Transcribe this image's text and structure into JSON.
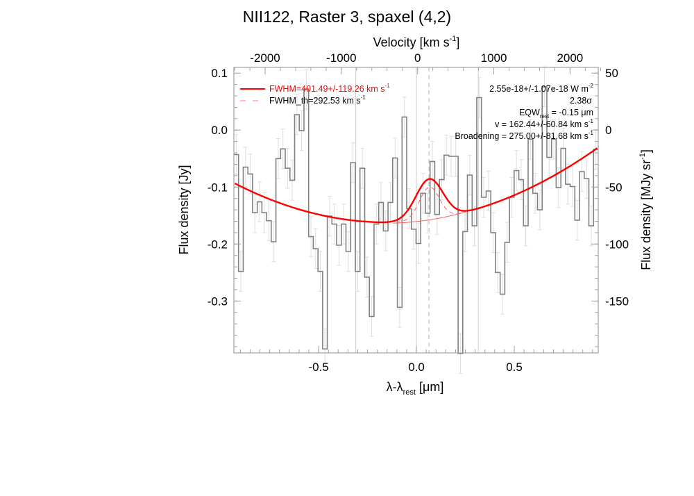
{
  "chart_data": {
    "type": "line",
    "title": "NII122, Raster 3, spaxel (4,2)",
    "top_xlabel": {
      "main": "Velocity [km s",
      "sup": "-1",
      "end": "]"
    },
    "xlabel": {
      "main": "λ-λ",
      "sub": "rest",
      "end": " [μm]"
    },
    "ylabel": "Flux density [Jy]",
    "right_ylabel": {
      "main": "Flux density [MJy sr",
      "sup": "-1",
      "end": "]"
    },
    "xlim": [
      -0.933,
      0.929
    ],
    "ylim": [
      -0.391,
      0.11
    ],
    "velocity_lim": [
      -2410,
      2370
    ],
    "right_ylim": [
      -195.5,
      55
    ],
    "xticks": [
      {
        "v": -0.5,
        "label": "-0.5"
      },
      {
        "v": 0.0,
        "label": "0.0"
      },
      {
        "v": 0.5,
        "label": "0.5"
      }
    ],
    "yticks": [
      {
        "v": 0.1,
        "label": "0.1"
      },
      {
        "v": 0.0,
        "label": "0.0"
      },
      {
        "v": -0.1,
        "label": "-0.1"
      },
      {
        "v": -0.2,
        "label": "-0.2"
      },
      {
        "v": -0.3,
        "label": "-0.3"
      }
    ],
    "velocity_ticks": [
      {
        "v": -2000,
        "label": "-2000"
      },
      {
        "v": -1000,
        "label": "-1000"
      },
      {
        "v": 0,
        "label": "0"
      },
      {
        "v": 1000,
        "label": "1000"
      },
      {
        "v": 2000,
        "label": "2000"
      }
    ],
    "right_yticks": [
      {
        "v": 50,
        "label": "50"
      },
      {
        "v": 0,
        "label": "0"
      },
      {
        "v": -50,
        "label": "-50"
      },
      {
        "v": -100,
        "label": "-100"
      },
      {
        "v": -150,
        "label": "-150"
      }
    ],
    "spectrum": {
      "name": "Observed flux",
      "color": "#808080",
      "error": 0.035,
      "values": [
        -0.043,
        -0.248,
        -0.065,
        -0.077,
        -0.145,
        -0.126,
        -0.145,
        -0.159,
        -0.196,
        -0.05,
        -0.033,
        -0.067,
        -0.088,
        0.027,
        -0.001,
        0.072,
        -0.187,
        -0.208,
        -0.248,
        -0.384,
        -0.151,
        -0.165,
        -0.202,
        -0.165,
        -0.213,
        -0.057,
        -0.248,
        -0.067,
        -0.258,
        -0.327,
        -0.165,
        -0.127,
        -0.177,
        -0.127,
        -0.049,
        -0.311,
        0.023,
        -0.138,
        -0.174,
        -0.199,
        -0.111,
        -0.146,
        -0.055,
        -0.148,
        -0.087,
        -0.044,
        -0.046,
        -0.046,
        -0.392,
        -0.178,
        -0.079,
        -0.168,
        0.057,
        -0.118,
        -0.107,
        -0.18,
        -0.25,
        -0.288,
        -0.197,
        -0.118,
        -0.071,
        -0.087,
        -0.168,
        -0.016,
        -0.111,
        -0.14,
        0.076,
        -0.048,
        -0.016,
        -0.101,
        -0.032,
        -0.095,
        -0.099,
        -0.158,
        -0.073,
        -0.085,
        -0.168,
        -0.034
      ]
    },
    "fit": {
      "color": "#ff0000",
      "continuum": {
        "center": -0.15,
        "curvature": 0.113,
        "minimum": -0.162
      },
      "line_center": 0.066,
      "line_amplitude": 0.071,
      "line_fwhm_um": 0.163,
      "theoretical_fwhm_um": 0.119
    },
    "reference_lines": [
      -0.31,
      0.0,
      0.316
    ],
    "line_center_marker": 0.064,
    "legend": [
      {
        "text": "FWHM=401.49+/-119.26 km s",
        "sup": "-1",
        "style": "solid"
      },
      {
        "text": "FWHM_th=292.53 km s",
        "sup": "-1",
        "style": "dashed"
      }
    ],
    "annotations": {
      "flux": {
        "text": "2.55e-18+/-1.07e-18 W m",
        "sup": "-2"
      },
      "sigma": "2.38σ",
      "eqw": {
        "main": "EQW",
        "sub": "rest",
        "end": " = -0.15 μm"
      },
      "velocity": {
        "text": "v = 162.44+/-60.84 km s",
        "sup": "-1"
      },
      "broadening": {
        "text": "Broadening = 275.00+/-81.68 km s",
        "sup": "-1"
      }
    }
  }
}
